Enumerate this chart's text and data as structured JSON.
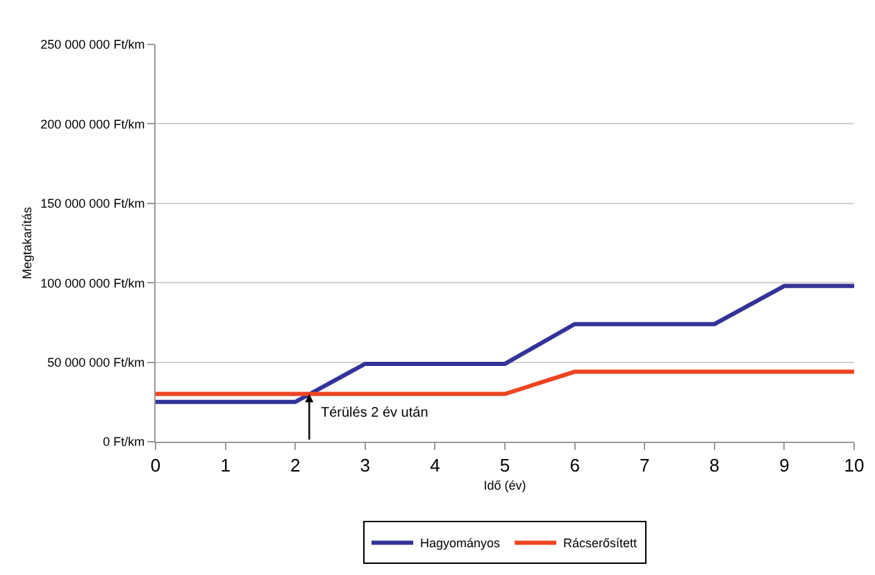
{
  "chart_data": {
    "type": "line",
    "xlabel": "Idő (év)",
    "ylabel": "Megtakarítás",
    "x": [
      0,
      2,
      3,
      5,
      6,
      8,
      9,
      10
    ],
    "series": [
      {
        "name": "Hagyományos",
        "color": "#333399",
        "values": [
          25000000,
          25000000,
          49000000,
          49000000,
          74000000,
          74000000,
          98000000,
          98000000
        ]
      },
      {
        "name": "Rácserősített",
        "color": "#ee4422",
        "x": [
          0,
          5,
          6,
          10
        ],
        "values": [
          30000000,
          30000000,
          44000000,
          44000000
        ]
      }
    ],
    "xlim": [
      0,
      10
    ],
    "xticks": [
      0,
      1,
      2,
      3,
      4,
      5,
      6,
      7,
      8,
      9,
      10
    ],
    "ylim": [
      0,
      250000000
    ],
    "yticks": [
      {
        "value": 0,
        "label": "0 Ft/km"
      },
      {
        "value": 50000000,
        "label": "50 000 000 Ft/km"
      },
      {
        "value": 100000000,
        "label": "100 000 000 Ft/km"
      },
      {
        "value": 150000000,
        "label": "150 000 000 Ft/km"
      },
      {
        "value": 200000000,
        "label": "200 000 000 Ft/km"
      },
      {
        "value": 250000000,
        "label": "250 000 000 Ft/km"
      }
    ],
    "annotations": [
      {
        "text": "Térülés 2 év után",
        "x": 2.2,
        "y": 30000000
      }
    ],
    "grid": "y",
    "legend": "bottom",
    "marker": "none",
    "line_style": "solid"
  }
}
